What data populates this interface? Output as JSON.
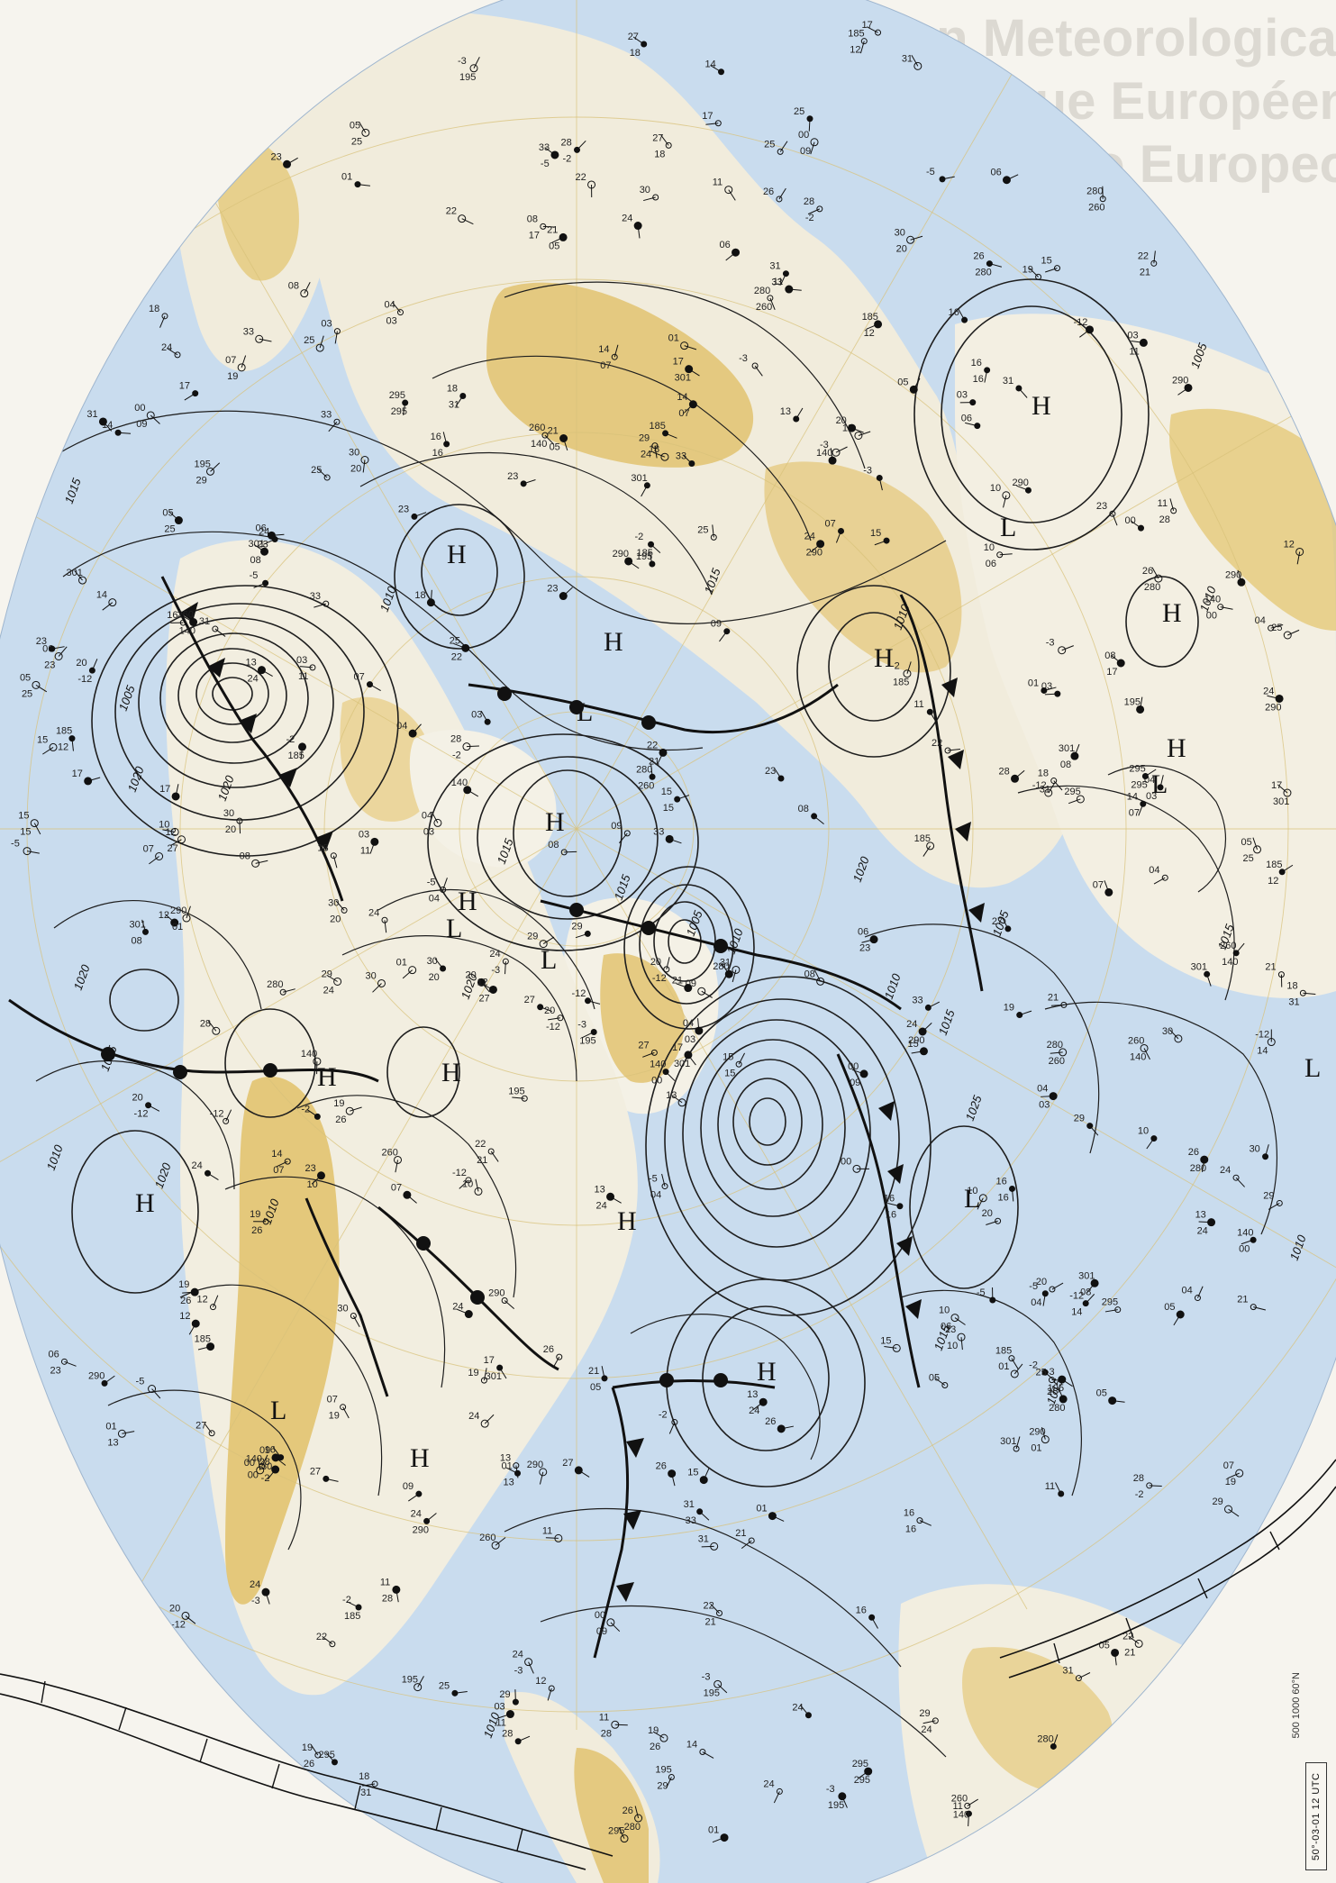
{
  "watermark": {
    "lines": [
      "European Meteorological",
      "Bulletin Météorologique Européen",
      "Boletín Meteorológico Europeo"
    ]
  },
  "map": {
    "type": "surface weather analysis chart",
    "projection": "polar stereographic, northern hemisphere",
    "colors": {
      "ocean": "#c9dcee",
      "land_low": "#f4f1e6",
      "land_high": "#e2c370",
      "land_mid": "#eddcaa",
      "grid": "#d8c27a",
      "isobar": "#1e1e1e"
    },
    "date_label": "50°-03-01 12 UTC",
    "grid_label": "500 1000 60°N",
    "pressure_centers": [
      {
        "type": "H",
        "label": "H"
      },
      {
        "type": "L",
        "label": "L"
      },
      {
        "type": "H",
        "label": "H"
      },
      {
        "type": "H",
        "label": "H"
      },
      {
        "type": "L",
        "label": "L"
      },
      {
        "type": "H",
        "label": "H"
      },
      {
        "type": "L",
        "label": "L"
      },
      {
        "type": "H",
        "label": "H"
      },
      {
        "type": "H",
        "label": "H"
      },
      {
        "type": "H",
        "label": "H"
      },
      {
        "type": "L",
        "label": "L"
      },
      {
        "type": "H",
        "label": "H"
      },
      {
        "type": "H",
        "label": "H"
      },
      {
        "type": "H",
        "label": "H"
      },
      {
        "type": "L",
        "label": "L"
      },
      {
        "type": "H",
        "label": "H"
      },
      {
        "type": "L",
        "label": "L"
      },
      {
        "type": "H",
        "label": "H"
      },
      {
        "type": "H",
        "label": "H"
      },
      {
        "type": "H",
        "label": "H"
      },
      {
        "type": "L",
        "label": "L"
      },
      {
        "type": "H",
        "label": "H"
      },
      {
        "type": "L",
        "label": "L"
      },
      {
        "type": "L",
        "label": "L"
      }
    ],
    "isobar_labels": [
      "1010",
      "1015",
      "1020",
      "1005",
      "1010",
      "1015",
      "1020",
      "1005",
      "1010",
      "1015",
      "1020",
      "1010",
      "1015",
      "1005",
      "1010",
      "1015",
      "1020",
      "1010",
      "1015",
      "1020",
      "1025",
      "1010",
      "1015",
      "1010",
      "1005",
      "1015",
      "1020",
      "1010",
      "1015",
      "1010"
    ],
    "station_values": [
      "27",
      "25",
      "23",
      "18",
      "24",
      "26",
      "12",
      "15",
      "09",
      "03",
      "22",
      "20",
      "17",
      "29",
      "30",
      "28",
      "13",
      "10",
      "-2",
      "05",
      "00",
      "11",
      "16",
      "14",
      "31",
      "24",
      "19",
      "08",
      "21",
      "07",
      "-5",
      "-3",
      "06",
      "04",
      "01",
      "-12",
      "33",
      "295",
      "280",
      "185",
      "195",
      "140",
      "301",
      "290",
      "260"
    ]
  }
}
